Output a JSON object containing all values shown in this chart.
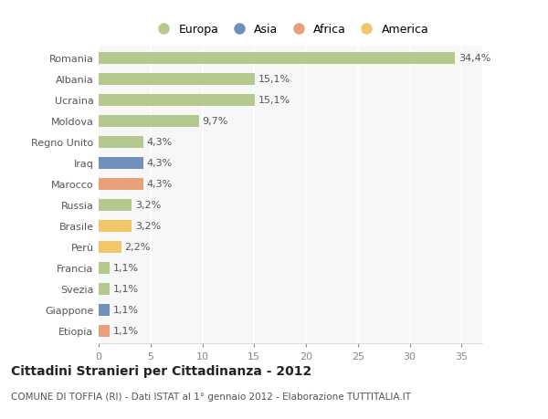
{
  "categories": [
    "Romania",
    "Albania",
    "Ucraina",
    "Moldova",
    "Regno Unito",
    "Iraq",
    "Marocco",
    "Russia",
    "Brasile",
    "Perù",
    "Francia",
    "Svezia",
    "Giappone",
    "Etiopia"
  ],
  "values": [
    34.4,
    15.1,
    15.1,
    9.7,
    4.3,
    4.3,
    4.3,
    3.2,
    3.2,
    2.2,
    1.1,
    1.1,
    1.1,
    1.1
  ],
  "labels": [
    "34,4%",
    "15,1%",
    "15,1%",
    "9,7%",
    "4,3%",
    "4,3%",
    "4,3%",
    "3,2%",
    "3,2%",
    "2,2%",
    "1,1%",
    "1,1%",
    "1,1%",
    "1,1%"
  ],
  "colors": [
    "#b5c98e",
    "#b5c98e",
    "#b5c98e",
    "#b5c98e",
    "#b5c98e",
    "#7090bc",
    "#e8a07a",
    "#b5c98e",
    "#f0c86a",
    "#f0c86a",
    "#b5c98e",
    "#b5c98e",
    "#7090bc",
    "#e8a07a"
  ],
  "legend_labels": [
    "Europa",
    "Asia",
    "Africa",
    "America"
  ],
  "legend_colors": [
    "#b5c98e",
    "#7090bc",
    "#e8a07a",
    "#f0c86a"
  ],
  "xlim": [
    0,
    37
  ],
  "xticks": [
    0,
    5,
    10,
    15,
    20,
    25,
    30,
    35
  ],
  "title": "Cittadini Stranieri per Cittadinanza - 2012",
  "subtitle": "COMUNE DI TOFFIA (RI) - Dati ISTAT al 1° gennaio 2012 - Elaborazione TUTTITALIA.IT",
  "bg_color": "#ffffff",
  "plot_bg_color": "#f7f7f7",
  "bar_height": 0.55,
  "grid_color": "#ffffff",
  "label_fontsize": 8,
  "tick_fontsize": 8,
  "title_fontsize": 10,
  "subtitle_fontsize": 7.5
}
